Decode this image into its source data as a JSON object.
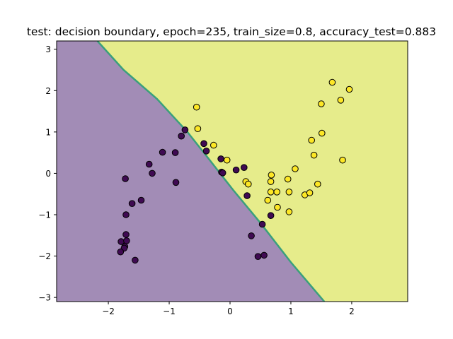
{
  "chart_data": {
    "type": "scatter",
    "title": "test: decision boundary, epoch=235, train_size=0.8, accuracy_test=0.883",
    "xlabel": "",
    "ylabel": "",
    "xlim": [
      -2.85,
      2.92
    ],
    "ylim": [
      -3.1,
      3.2
    ],
    "x_ticks": [
      -2,
      -1,
      0,
      1,
      2
    ],
    "y_ticks": [
      -3,
      -2,
      -1,
      0,
      1,
      2,
      3
    ],
    "grid": false,
    "legend": "none",
    "decision_boundary": {
      "points": [
        [
          -2.18,
          3.2
        ],
        [
          -1.75,
          2.5
        ],
        [
          -1.2,
          1.8
        ],
        [
          -0.7,
          1.0
        ],
        [
          -0.35,
          0.35
        ],
        [
          0.05,
          -0.4
        ],
        [
          0.5,
          -1.2
        ],
        [
          1.0,
          -2.15
        ],
        [
          1.55,
          -3.1
        ]
      ],
      "region_class_0_color": "#a28cb6",
      "region_class_1_color": "#e6ec8b",
      "boundary_band_color": "#3aa07c"
    },
    "series": [
      {
        "class": 0,
        "color": "#3f0a52",
        "points": [
          [
            -0.74,
            1.05
          ],
          [
            -0.8,
            0.9
          ],
          [
            -0.43,
            0.72
          ],
          [
            -0.39,
            0.54
          ],
          [
            -0.15,
            0.35
          ],
          [
            -0.14,
            0.03
          ],
          [
            -0.12,
            0.01
          ],
          [
            0.1,
            0.08
          ],
          [
            0.23,
            0.14
          ],
          [
            -0.9,
            0.5
          ],
          [
            -1.11,
            0.51
          ],
          [
            -1.33,
            0.22
          ],
          [
            -1.28,
            0.0
          ],
          [
            -0.89,
            -0.22
          ],
          [
            -1.72,
            -0.13
          ],
          [
            -1.46,
            -0.65
          ],
          [
            -1.61,
            -0.73
          ],
          [
            -1.71,
            -1.0
          ],
          [
            0.28,
            -0.54
          ],
          [
            0.53,
            -1.23
          ],
          [
            0.35,
            -1.51
          ],
          [
            0.67,
            -1.02
          ],
          [
            0.46,
            -2.01
          ],
          [
            0.56,
            -1.98
          ],
          [
            -1.71,
            -1.48
          ],
          [
            -1.79,
            -1.65
          ],
          [
            -1.7,
            -1.63
          ],
          [
            -1.73,
            -1.77
          ],
          [
            -1.74,
            -1.81
          ],
          [
            -1.8,
            -1.9
          ],
          [
            -1.56,
            -2.1
          ]
        ]
      },
      {
        "class": 1,
        "color": "#fde725",
        "points": [
          [
            -0.55,
            1.6
          ],
          [
            -0.53,
            1.08
          ],
          [
            -0.27,
            0.68
          ],
          [
            -0.05,
            0.32
          ],
          [
            0.26,
            -0.2
          ],
          [
            0.3,
            -0.26
          ],
          [
            0.68,
            -0.04
          ],
          [
            0.67,
            -0.2
          ],
          [
            0.67,
            -0.45
          ],
          [
            0.77,
            -0.45
          ],
          [
            0.62,
            -0.65
          ],
          [
            0.78,
            -0.82
          ],
          [
            0.95,
            -0.14
          ],
          [
            0.97,
            -0.45
          ],
          [
            0.97,
            -0.93
          ],
          [
            1.07,
            0.11
          ],
          [
            1.23,
            -0.52
          ],
          [
            1.31,
            -0.47
          ],
          [
            1.44,
            -0.26
          ],
          [
            1.34,
            0.8
          ],
          [
            1.38,
            0.44
          ],
          [
            1.51,
            0.97
          ],
          [
            1.5,
            1.68
          ],
          [
            1.68,
            2.2
          ],
          [
            1.82,
            1.77
          ],
          [
            1.96,
            2.03
          ],
          [
            1.85,
            0.32
          ]
        ]
      }
    ]
  }
}
